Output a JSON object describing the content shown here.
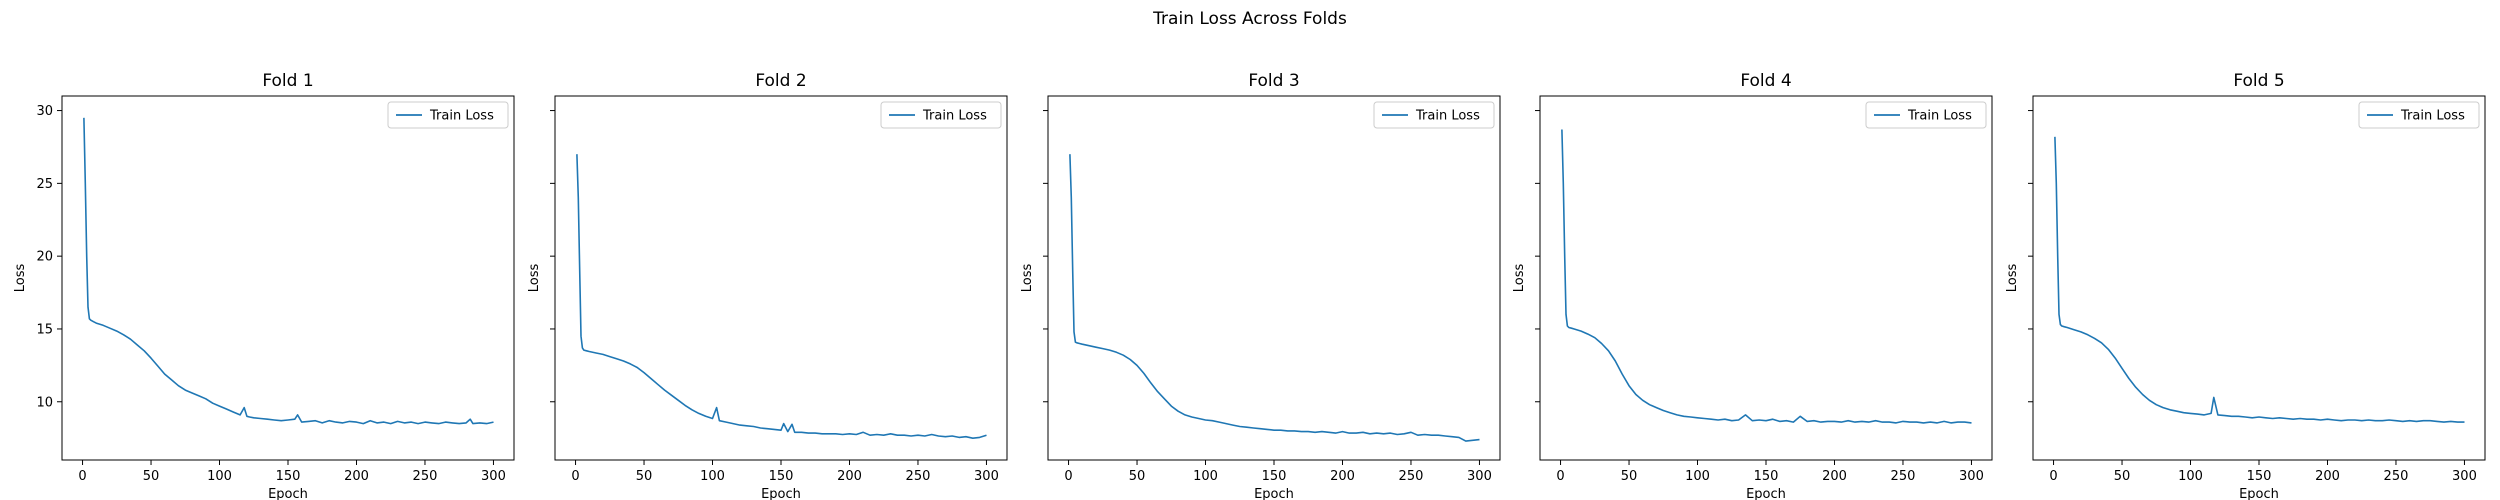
{
  "figure": {
    "suptitle": "Train Loss Across Folds",
    "line_color": "#1f77b4"
  },
  "chart_data": [
    {
      "type": "line",
      "title": "Fold 1",
      "xlabel": "Epoch",
      "ylabel": "Loss",
      "xlim": [
        -15,
        315
      ],
      "ylim": [
        6,
        31
      ],
      "xticks": [
        0,
        50,
        100,
        150,
        200,
        250,
        300
      ],
      "yticks": [
        10,
        15,
        20,
        25,
        30
      ],
      "legend": "top-right",
      "series": [
        {
          "name": "Train Loss",
          "x": [
            1,
            2,
            3,
            4,
            5,
            6,
            8,
            10,
            15,
            20,
            25,
            30,
            35,
            40,
            45,
            50,
            55,
            60,
            65,
            70,
            75,
            80,
            85,
            90,
            95,
            100,
            105,
            110,
            115,
            118,
            120,
            122,
            125,
            130,
            135,
            140,
            145,
            150,
            155,
            157,
            160,
            165,
            170,
            175,
            180,
            185,
            190,
            195,
            200,
            205,
            210,
            215,
            220,
            225,
            230,
            235,
            240,
            245,
            250,
            255,
            260,
            265,
            270,
            275,
            280,
            283,
            285,
            290,
            295,
            300
          ],
          "values": [
            29.5,
            25.0,
            20.0,
            16.5,
            15.7,
            15.6,
            15.5,
            15.4,
            15.25,
            15.05,
            14.85,
            14.6,
            14.3,
            13.9,
            13.5,
            13.0,
            12.45,
            11.9,
            11.5,
            11.1,
            10.8,
            10.6,
            10.4,
            10.2,
            9.9,
            9.7,
            9.5,
            9.3,
            9.1,
            9.6,
            9.0,
            8.95,
            8.9,
            8.85,
            8.8,
            8.75,
            8.7,
            8.75,
            8.8,
            9.1,
            8.6,
            8.65,
            8.7,
            8.55,
            8.7,
            8.6,
            8.55,
            8.65,
            8.6,
            8.5,
            8.7,
            8.55,
            8.6,
            8.5,
            8.65,
            8.55,
            8.6,
            8.5,
            8.6,
            8.55,
            8.5,
            8.6,
            8.55,
            8.5,
            8.55,
            8.8,
            8.5,
            8.55,
            8.5,
            8.6
          ]
        }
      ]
    },
    {
      "type": "line",
      "title": "Fold 2",
      "xlabel": "Epoch",
      "ylabel": "Loss",
      "xlim": [
        -15,
        315
      ],
      "ylim": [
        6,
        31
      ],
      "xticks": [
        0,
        50,
        100,
        150,
        200,
        250,
        300
      ],
      "yticks": [
        10,
        15,
        20,
        25,
        30
      ],
      "legend": "top-right",
      "series": [
        {
          "name": "Train Loss",
          "x": [
            1,
            2,
            3,
            4,
            5,
            6,
            8,
            10,
            15,
            20,
            25,
            30,
            35,
            40,
            45,
            50,
            55,
            60,
            65,
            70,
            75,
            80,
            85,
            90,
            95,
            100,
            103,
            105,
            110,
            115,
            120,
            125,
            130,
            135,
            140,
            145,
            150,
            152,
            155,
            158,
            160,
            165,
            170,
            175,
            180,
            185,
            190,
            195,
            200,
            205,
            210,
            215,
            220,
            225,
            230,
            235,
            240,
            245,
            250,
            255,
            260,
            265,
            270,
            275,
            280,
            285,
            290,
            295,
            300
          ],
          "values": [
            27.0,
            24.0,
            19.0,
            14.5,
            13.7,
            13.55,
            13.5,
            13.45,
            13.35,
            13.25,
            13.1,
            12.95,
            12.8,
            12.6,
            12.35,
            12.0,
            11.6,
            11.2,
            10.8,
            10.45,
            10.1,
            9.75,
            9.45,
            9.2,
            9.0,
            8.85,
            9.6,
            8.7,
            8.6,
            8.5,
            8.4,
            8.35,
            8.3,
            8.2,
            8.15,
            8.1,
            8.05,
            8.5,
            7.95,
            8.45,
            7.9,
            7.9,
            7.85,
            7.85,
            7.8,
            7.8,
            7.8,
            7.75,
            7.8,
            7.75,
            7.9,
            7.7,
            7.75,
            7.7,
            7.8,
            7.7,
            7.7,
            7.65,
            7.7,
            7.65,
            7.75,
            7.65,
            7.6,
            7.65,
            7.55,
            7.6,
            7.5,
            7.55,
            7.7
          ]
        }
      ]
    },
    {
      "type": "line",
      "title": "Fold 3",
      "xlabel": "Epoch",
      "ylabel": "Loss",
      "xlim": [
        -15,
        315
      ],
      "ylim": [
        6,
        31
      ],
      "xticks": [
        0,
        50,
        100,
        150,
        200,
        250,
        300
      ],
      "yticks": [
        10,
        15,
        20,
        25,
        30
      ],
      "legend": "top-right",
      "series": [
        {
          "name": "Train Loss",
          "x": [
            1,
            2,
            3,
            4,
            5,
            6,
            8,
            10,
            15,
            20,
            25,
            30,
            35,
            40,
            45,
            50,
            55,
            60,
            65,
            70,
            75,
            80,
            85,
            90,
            95,
            100,
            105,
            110,
            115,
            120,
            125,
            130,
            135,
            140,
            145,
            150,
            155,
            160,
            165,
            170,
            175,
            180,
            185,
            190,
            195,
            200,
            205,
            210,
            215,
            220,
            225,
            230,
            235,
            240,
            245,
            250,
            255,
            260,
            265,
            270,
            275,
            280,
            285,
            290,
            295,
            300
          ],
          "values": [
            27.0,
            24.0,
            19.0,
            14.8,
            14.1,
            14.05,
            14.0,
            13.95,
            13.85,
            13.75,
            13.65,
            13.55,
            13.4,
            13.2,
            12.9,
            12.5,
            11.95,
            11.3,
            10.7,
            10.2,
            9.7,
            9.35,
            9.1,
            8.95,
            8.85,
            8.75,
            8.7,
            8.6,
            8.5,
            8.4,
            8.3,
            8.25,
            8.2,
            8.15,
            8.1,
            8.05,
            8.05,
            8.0,
            8.0,
            7.95,
            7.95,
            7.9,
            7.95,
            7.9,
            7.85,
            7.95,
            7.85,
            7.85,
            7.9,
            7.8,
            7.85,
            7.8,
            7.85,
            7.75,
            7.8,
            7.9,
            7.7,
            7.75,
            7.7,
            7.7,
            7.65,
            7.6,
            7.55,
            7.3,
            7.35,
            7.4
          ]
        }
      ]
    },
    {
      "type": "line",
      "title": "Fold 4",
      "xlabel": "Epoch",
      "ylabel": "Loss",
      "xlim": [
        -15,
        315
      ],
      "ylim": [
        6,
        31
      ],
      "xticks": [
        0,
        50,
        100,
        150,
        200,
        250,
        300
      ],
      "yticks": [
        10,
        15,
        20,
        25,
        30
      ],
      "legend": "top-right",
      "series": [
        {
          "name": "Train Loss",
          "x": [
            1,
            2,
            3,
            4,
            5,
            6,
            8,
            10,
            15,
            20,
            25,
            30,
            35,
            40,
            45,
            50,
            55,
            60,
            65,
            70,
            75,
            80,
            85,
            90,
            95,
            100,
            105,
            110,
            115,
            120,
            125,
            130,
            135,
            140,
            145,
            150,
            155,
            160,
            165,
            170,
            175,
            180,
            185,
            190,
            195,
            200,
            205,
            210,
            215,
            220,
            225,
            230,
            235,
            240,
            245,
            250,
            255,
            260,
            265,
            270,
            275,
            280,
            285,
            290,
            295,
            300
          ],
          "values": [
            28.7,
            25.0,
            20.0,
            16.0,
            15.2,
            15.1,
            15.05,
            15.0,
            14.85,
            14.65,
            14.4,
            14.0,
            13.5,
            12.8,
            11.9,
            11.1,
            10.5,
            10.1,
            9.8,
            9.6,
            9.4,
            9.25,
            9.1,
            9.0,
            8.95,
            8.9,
            8.85,
            8.8,
            8.75,
            8.8,
            8.7,
            8.75,
            9.1,
            8.7,
            8.75,
            8.7,
            8.8,
            8.65,
            8.7,
            8.6,
            9.0,
            8.65,
            8.7,
            8.6,
            8.65,
            8.65,
            8.6,
            8.7,
            8.6,
            8.65,
            8.6,
            8.7,
            8.6,
            8.6,
            8.55,
            8.65,
            8.6,
            8.6,
            8.55,
            8.6,
            8.55,
            8.65,
            8.55,
            8.6,
            8.6,
            8.55
          ]
        }
      ]
    },
    {
      "type": "line",
      "title": "Fold 5",
      "xlabel": "Epoch",
      "ylabel": "Loss",
      "xlim": [
        -15,
        315
      ],
      "ylim": [
        6,
        31
      ],
      "xticks": [
        0,
        50,
        100,
        150,
        200,
        250,
        300
      ],
      "yticks": [
        10,
        15,
        20,
        25,
        30
      ],
      "legend": "top-right",
      "series": [
        {
          "name": "Train Loss",
          "x": [
            1,
            2,
            3,
            4,
            5,
            6,
            8,
            10,
            15,
            20,
            25,
            30,
            35,
            40,
            45,
            50,
            55,
            60,
            65,
            70,
            75,
            80,
            85,
            90,
            95,
            100,
            105,
            110,
            115,
            117,
            120,
            125,
            130,
            135,
            140,
            145,
            150,
            155,
            160,
            165,
            170,
            175,
            180,
            185,
            190,
            195,
            200,
            205,
            210,
            215,
            220,
            225,
            230,
            235,
            240,
            245,
            250,
            255,
            260,
            265,
            270,
            275,
            280,
            285,
            290,
            295,
            300
          ],
          "values": [
            28.2,
            25.0,
            20.0,
            16.0,
            15.3,
            15.2,
            15.15,
            15.1,
            14.95,
            14.8,
            14.6,
            14.35,
            14.05,
            13.6,
            13.0,
            12.3,
            11.6,
            11.0,
            10.5,
            10.1,
            9.8,
            9.6,
            9.45,
            9.35,
            9.25,
            9.2,
            9.15,
            9.1,
            9.2,
            10.3,
            9.1,
            9.05,
            9.0,
            9.0,
            8.95,
            8.9,
            8.95,
            8.9,
            8.85,
            8.9,
            8.85,
            8.8,
            8.85,
            8.8,
            8.8,
            8.75,
            8.8,
            8.75,
            8.7,
            8.75,
            8.75,
            8.7,
            8.75,
            8.7,
            8.7,
            8.75,
            8.7,
            8.65,
            8.7,
            8.65,
            8.7,
            8.7,
            8.65,
            8.6,
            8.65,
            8.6,
            8.6
          ]
        }
      ]
    }
  ]
}
